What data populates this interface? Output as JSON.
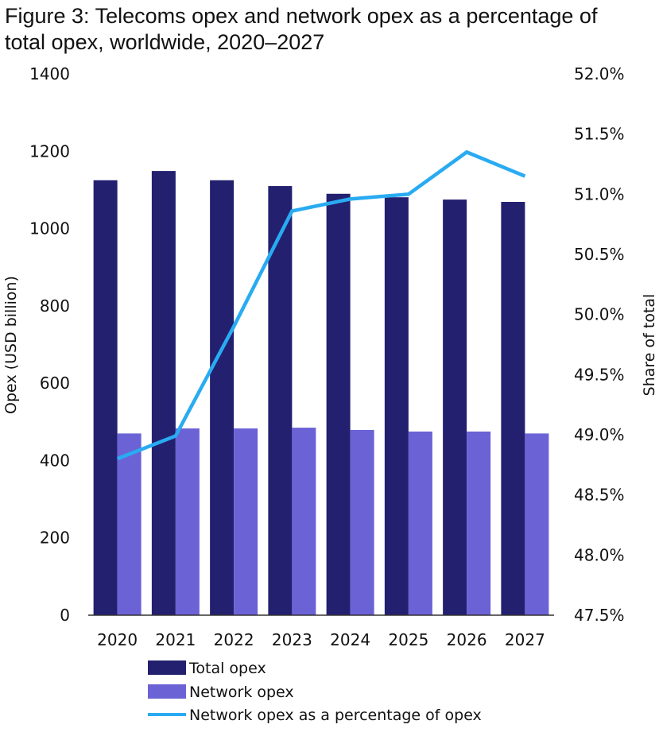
{
  "chart_data": {
    "type": "bar",
    "title": "Figure 3: Telecoms opex and network opex as a percentage of total opex, worldwide, 2020–2027",
    "title_lines": [
      "Figure 3: Telecoms opex and network opex as a percentage of",
      "total opex, worldwide, 2020–2027"
    ],
    "categories": [
      "2020",
      "2021",
      "2022",
      "2023",
      "2024",
      "2025",
      "2026",
      "2027"
    ],
    "series": [
      {
        "name": "Total opex",
        "type": "bar",
        "axis": "left",
        "color": "#232070",
        "values": [
          1125,
          1149,
          1125,
          1110,
          1090,
          1081,
          1075,
          1069
        ]
      },
      {
        "name": "Network opex",
        "type": "bar",
        "axis": "left",
        "color": "#6b62d6",
        "values": [
          470,
          483,
          483,
          485,
          479,
          475,
          475,
          470
        ]
      },
      {
        "name": "Network opex as a percentage of opex",
        "type": "line",
        "axis": "right",
        "color": "#29abf2",
        "values": [
          48.8,
          48.99,
          49.9,
          50.86,
          50.96,
          51.0,
          51.35,
          51.15
        ]
      }
    ],
    "ylabel": "Opex (USD billion)",
    "ylim": [
      0,
      1400
    ],
    "yticks": [
      "0",
      "200",
      "400",
      "600",
      "800",
      "1000",
      "1200",
      "1400"
    ],
    "ytick_values": [
      0,
      200,
      400,
      600,
      800,
      1000,
      1200,
      1400
    ],
    "y2label": "Share of total",
    "y2lim": [
      47.5,
      52.0
    ],
    "y2ticks": [
      "47.5%",
      "48.0%",
      "48.5%",
      "49.0%",
      "49.5%",
      "50.0%",
      "50.5%",
      "51.0%",
      "51.5%",
      "52.0%"
    ],
    "y2tick_values": [
      47.5,
      48.0,
      48.5,
      49.0,
      49.5,
      50.0,
      50.5,
      51.0,
      51.5,
      52.0
    ],
    "grid": false,
    "legend_position": "bottom"
  }
}
